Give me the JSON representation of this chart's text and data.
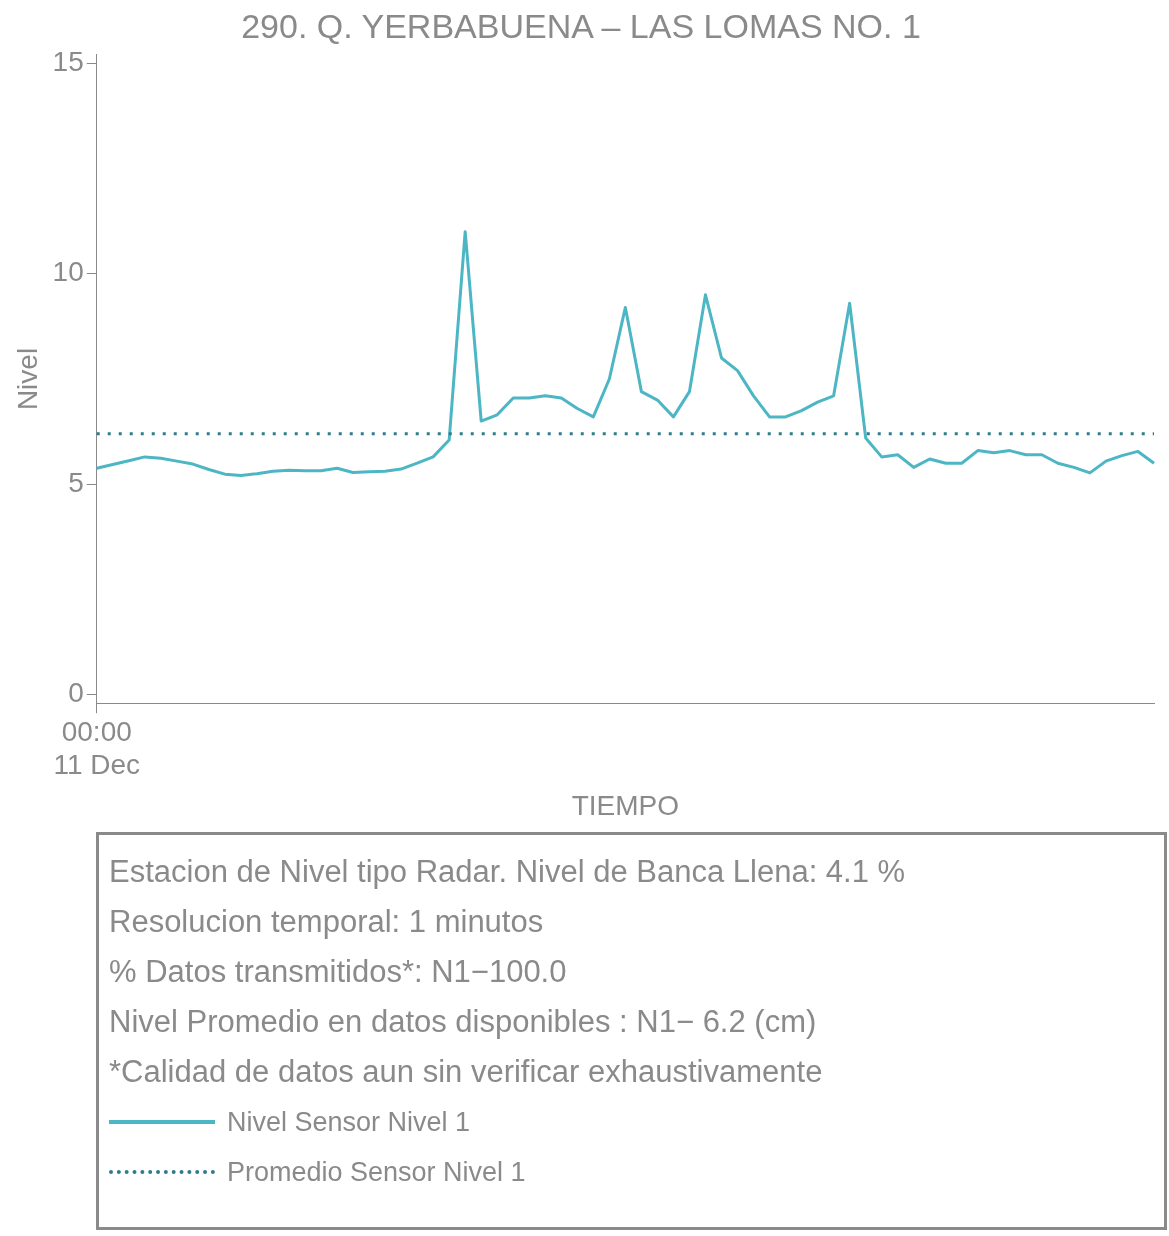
{
  "chart_data": {
    "type": "line",
    "title": "290. Q. YERBABUENA – LAS LOMAS NO. 1",
    "xlabel": "TIEMPO",
    "ylabel": "Nivel",
    "categories": [
      "00:00\n11 Dec",
      null,
      null,
      null,
      null,
      null,
      null,
      null,
      null,
      null,
      null,
      null,
      null,
      null,
      null,
      null,
      null,
      null,
      null,
      null,
      null,
      null,
      null,
      null,
      null,
      null,
      null,
      null,
      null,
      null,
      null,
      null,
      null,
      null,
      null,
      null,
      null,
      null,
      null,
      null,
      null,
      null,
      null,
      null,
      null,
      null,
      null,
      null,
      null,
      null,
      null,
      null,
      null,
      null,
      null,
      null,
      null,
      null,
      null,
      null,
      null,
      null,
      null,
      null,
      null,
      null,
      null
    ],
    "series": [
      {
        "name": "Nivel Sensor Nivel 1",
        "color": "#4db6c4",
        "values": [
          5.38,
          5.47,
          5.56,
          5.65,
          5.62,
          5.55,
          5.48,
          5.35,
          5.24,
          5.21,
          5.25,
          5.31,
          5.33,
          5.32,
          5.32,
          5.38,
          5.28,
          5.3,
          5.31,
          5.36,
          5.5,
          5.65,
          6.05,
          11.0,
          6.5,
          6.65,
          7.05,
          7.05,
          7.1,
          7.05,
          6.8,
          6.6,
          7.5,
          9.2,
          7.2,
          7.0,
          6.6,
          7.2,
          9.5,
          8.0,
          7.7,
          7.1,
          6.6,
          6.6,
          6.75,
          6.95,
          7.1,
          9.3,
          6.1,
          5.65,
          5.7,
          5.4,
          5.6,
          5.5,
          5.5,
          5.8,
          5.75,
          5.8,
          5.7,
          5.7,
          5.5,
          5.4,
          5.27,
          5.55,
          5.68,
          5.78,
          5.5
        ]
      }
    ],
    "ref_lines": [
      {
        "axis": "y",
        "value": 6.2,
        "label": "Promedio Sensor Nivel 1",
        "color": "#2e7d8c",
        "line_style": "dotted"
      }
    ],
    "ylim": [
      -0.2,
      15.2
    ],
    "yticks": [
      0,
      5,
      10,
      15
    ],
    "grid": false,
    "legend": "bottom",
    "marker": "none",
    "line_style": "solid",
    "annotations": [
      "Estacion de Nivel tipo Radar. Nivel de Banca Llena:  4.1 %",
      "Resolucion temporal: 1 minutos",
      "% Datos transmitidos*: N1−100.0",
      "Nivel Promedio en datos disponibles : N1−  6.2 (cm)",
      "*Calidad de datos aun sin verificar exhaustivamente"
    ]
  }
}
